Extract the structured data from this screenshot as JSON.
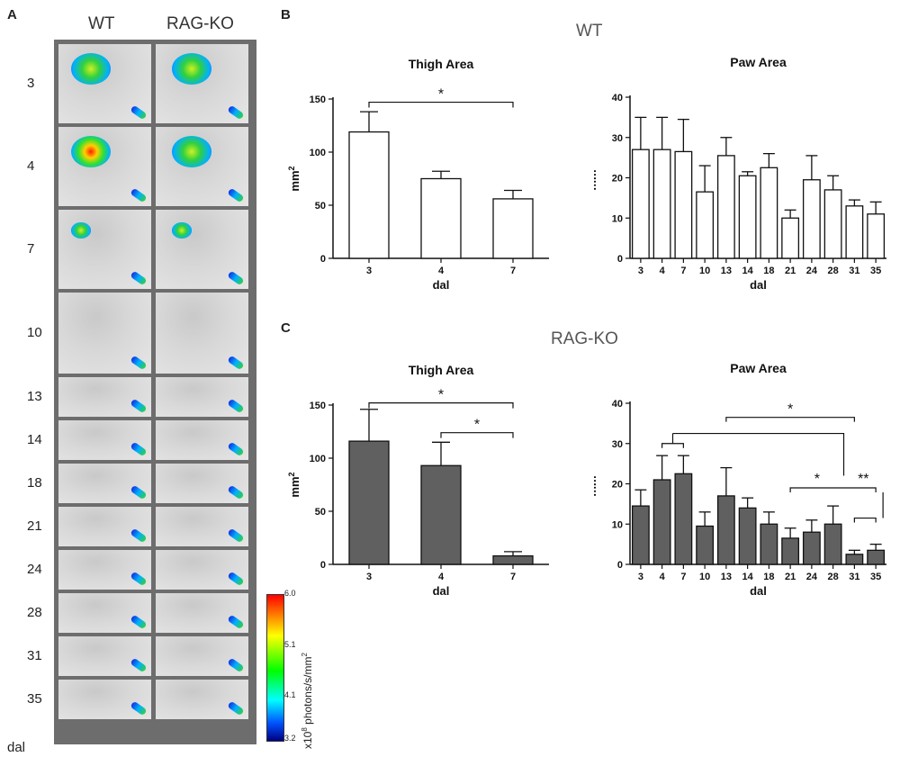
{
  "panel_a": {
    "letter": "A",
    "col_headers": [
      "WT",
      "RAG-KO"
    ],
    "rows": [
      {
        "label": "3"
      },
      {
        "label": "4"
      },
      {
        "label": "7"
      },
      {
        "label": "10"
      },
      {
        "label": "13"
      },
      {
        "label": "14"
      },
      {
        "label": "18"
      },
      {
        "label": "21"
      },
      {
        "label": "24"
      },
      {
        "label": "28"
      },
      {
        "label": "31"
      },
      {
        "label": "35"
      }
    ],
    "bottom_label": "dal",
    "colorbar": {
      "ticks": [
        "6.0",
        "5.1",
        "4.1",
        "3.2"
      ],
      "label_prefix": "x10",
      "label_exp": "8",
      "label_suffix": " photons/s/mm",
      "label_sq": "2",
      "colors": [
        "#ff0000",
        "#ffff00",
        "#00ff00",
        "#00ffff",
        "#0000ff"
      ]
    }
  },
  "panel_b": {
    "letter": "B",
    "group_title": "WT"
  },
  "panel_c": {
    "letter": "C",
    "group_title": "RAG-KO"
  },
  "chart_data": [
    {
      "id": "wt-thigh",
      "type": "bar",
      "title": "Thigh Area",
      "xlabel": "dal",
      "ylabel": "mm",
      "ylabel_sup": "2",
      "categories": [
        "3",
        "4",
        "7"
      ],
      "values": [
        119,
        75,
        56
      ],
      "errors": [
        19,
        7,
        8
      ],
      "ylim": [
        0,
        150
      ],
      "yticks": [
        0,
        50,
        100,
        150
      ],
      "bar_color": "#ffffff",
      "significance": [
        {
          "from": 0,
          "to": 2,
          "label": "*",
          "y": 147
        }
      ]
    },
    {
      "id": "wt-paw",
      "type": "bar",
      "title": "Paw Area",
      "xlabel": "dal",
      "ylabel": "mm",
      "ylabel_sup": "2",
      "categories": [
        "3",
        "4",
        "7",
        "10",
        "13",
        "14",
        "18",
        "21",
        "24",
        "28",
        "31",
        "35"
      ],
      "values": [
        27,
        27,
        26.5,
        16.5,
        25.5,
        20.5,
        22.5,
        10,
        19.5,
        17,
        13,
        11
      ],
      "errors": [
        8,
        8,
        8,
        6.5,
        4.5,
        1,
        3.5,
        2,
        6,
        3.5,
        1.5,
        3
      ],
      "ylim": [
        0,
        40
      ],
      "yticks": [
        0,
        10,
        20,
        30,
        40
      ],
      "bar_color": "#ffffff",
      "significance": []
    },
    {
      "id": "rag-thigh",
      "type": "bar",
      "title": "Thigh Area",
      "xlabel": "dal",
      "ylabel": "mm",
      "ylabel_sup": "2",
      "categories": [
        "3",
        "4",
        "7"
      ],
      "values": [
        116,
        93,
        8
      ],
      "errors": [
        30,
        22,
        4
      ],
      "ylim": [
        0,
        150
      ],
      "yticks": [
        0,
        50,
        100,
        150
      ],
      "bar_color": "#606060",
      "significance": [
        {
          "from": 0,
          "to": 2,
          "label": "*",
          "y": 152
        },
        {
          "from": 1,
          "to": 2,
          "label": "*",
          "y": 124
        }
      ]
    },
    {
      "id": "rag-paw",
      "type": "bar",
      "title": "Paw Area",
      "xlabel": "dal",
      "ylabel": "mm",
      "ylabel_sup": "2",
      "categories": [
        "3",
        "4",
        "7",
        "10",
        "13",
        "14",
        "18",
        "21",
        "24",
        "28",
        "31",
        "35"
      ],
      "values": [
        14.5,
        21,
        22.5,
        9.5,
        17,
        14,
        10,
        6.5,
        8,
        10,
        2.5,
        3.5
      ],
      "errors": [
        4,
        6,
        4.5,
        3.5,
        7,
        2.5,
        3,
        2.5,
        3,
        4.5,
        1,
        1.5
      ],
      "ylim": [
        0,
        40
      ],
      "yticks": [
        0,
        10,
        20,
        30,
        40
      ],
      "bar_color": "#606060",
      "significance": []
    }
  ],
  "rag_paw_brackets": {
    "star1": "*",
    "star2": "*",
    "star3": "**"
  }
}
